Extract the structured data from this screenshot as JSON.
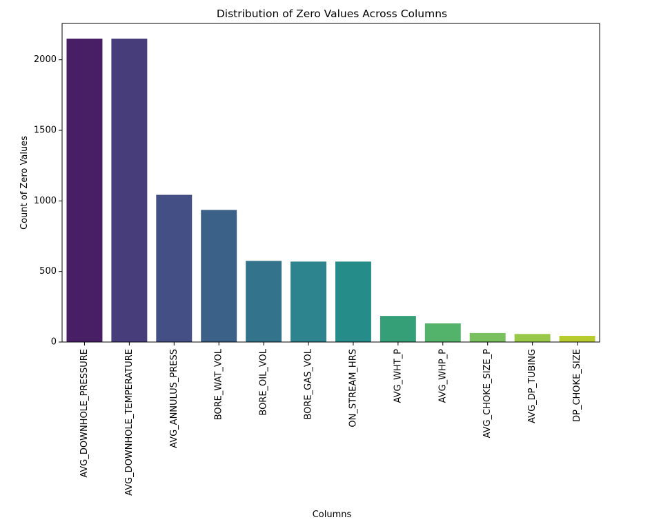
{
  "chart_data": {
    "type": "bar",
    "title": "Distribution of Zero Values Across Columns",
    "xlabel": "Columns",
    "ylabel": "Count of Zero Values",
    "categories": [
      "AVG_DOWNHOLE_PRESSURE",
      "AVG_DOWNHOLE_TEMPERATURE",
      "AVG_ANNULUS_PRESS",
      "BORE_WAT_VOL",
      "BORE_OIL_VOL",
      "BORE_GAS_VOL",
      "ON_STREAM_HRS",
      "AVG_WHT_P",
      "AVG_WHP_P",
      "AVG_CHOKE_SIZE_P",
      "AVG_DP_TUBING",
      "DP_CHOKE_SIZE"
    ],
    "values": [
      2150,
      2150,
      1043,
      936,
      575,
      570,
      570,
      185,
      132,
      64,
      57,
      44
    ],
    "colors": [
      "#481f64",
      "#483d7b",
      "#434f85",
      "#3b6188",
      "#34738c",
      "#2d838e",
      "#268c8a",
      "#35a077",
      "#53b36b",
      "#79c15f",
      "#99c848",
      "#b9cc2e"
    ],
    "yticks": [
      0,
      500,
      1000,
      1500,
      2000
    ],
    "ylim": [
      0,
      2257.5
    ],
    "grid": false,
    "legend": false
  }
}
